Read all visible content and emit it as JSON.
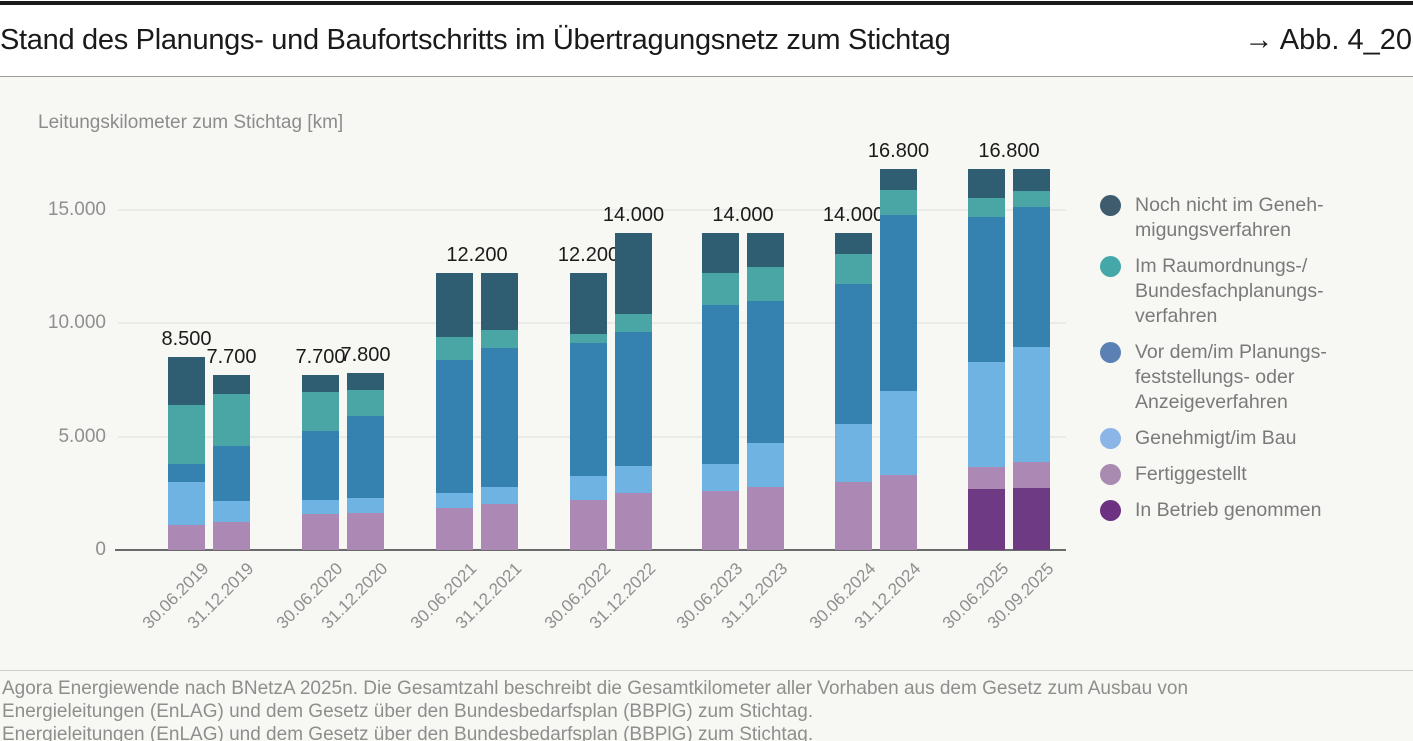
{
  "header": {
    "title": "Stand des Planungs- und Baufortschritts im Übertragungsnetz zum Stichtag",
    "figure_ref": "→ Abb. 4_20"
  },
  "footer": {
    "line1": "Agora Energiewende nach BNetzA 2025n. Die Gesamtzahl beschreibt die Gesamtkilometer aller Vorhaben aus dem Gesetz zum Ausbau von",
    "line2": "Energieleitungen (EnLAG) und dem Gesetz über den Bundesbedarfsplan (BBPlG) zum Stichtag.",
    "line3_clipped": "Energieleitungen (EnLAG) und dem Gesetz über den Bundesbedarfsplan (BBPlG) zum Stichtag."
  },
  "chart_data": {
    "type": "bar",
    "subtype": "stacked",
    "title": "Stand des Planungs- und Baufortschritts im Übertragungsnetz zum Stichtag",
    "ylabel": "Leitungskilometer zum Stichtag [km]",
    "unit": "km",
    "ylim": [
      0,
      17600
    ],
    "grid": true,
    "legend_position": "right",
    "yticks": [
      {
        "value": 0,
        "label": "0"
      },
      {
        "value": 5000,
        "label": "5.000"
      },
      {
        "value": 10000,
        "label": "10.000"
      },
      {
        "value": 15000,
        "label": "15.000"
      }
    ],
    "series": [
      {
        "name": "Noch nicht im Genehmigungsverfahren",
        "legend_label": "Noch nicht im Geneh-\nmigungsverfahren",
        "color": "#2F5D72",
        "dot": "#3E5C6E"
      },
      {
        "name": "Im Raumordnungs-/Bundesfachplanungsverfahren",
        "legend_label": "Im Raumordnungs-/\nBundesfachplanungs-\nverfahren",
        "color": "#49A6A4",
        "dot": "#45A8A8"
      },
      {
        "name": "Vor dem/im Planungsfeststellungs- oder Anzeigeverfahren",
        "legend_label": "Vor dem/im Planungs-\nfeststellungs- oder\nAnzeigeverfahren",
        "color": "#3581AF",
        "dot": "#5B80B4"
      },
      {
        "name": "Genehmigt/im Bau",
        "legend_label": "Genehmigt/im Bau",
        "color": "#6FB3E2",
        "dot": "#8BB4E7"
      },
      {
        "name": "Fertiggestellt",
        "legend_label": "Fertiggestellt",
        "color": "#AC88B4",
        "dot": "#A98AB1"
      },
      {
        "name": "In Betrieb genommen",
        "legend_label": "In Betrieb genommen",
        "color": "#6E3A84",
        "dot": "#6C3180"
      }
    ],
    "values_order_note": "values per bar follow series order top-of-stack to bottom-of-stack, in km",
    "groups": [
      {
        "center_label": null,
        "bars": [
          {
            "category": "30.06.2019",
            "values": [
              2100,
              2600,
              800,
              1900,
              1100,
              0
            ],
            "total": 8500,
            "label": "8.500"
          },
          {
            "category": "31.12.2019",
            "values": [
              800,
              2300,
              2450,
              900,
              1250,
              0
            ],
            "total": 7700,
            "label": "7.700"
          }
        ]
      },
      {
        "center_label": null,
        "bars": [
          {
            "category": "30.06.2020",
            "values": [
              750,
              1700,
              3050,
              600,
              1600,
              0
            ],
            "total": 7700,
            "label": "7.700"
          },
          {
            "category": "31.12.2020",
            "values": [
              750,
              1150,
              3600,
              650,
              1650,
              0
            ],
            "total": 7800,
            "label": "7.800"
          }
        ]
      },
      {
        "center_label": "12.200",
        "bars": [
          {
            "category": "30.06.2021",
            "values": [
              2800,
              1000,
              5900,
              650,
              1850,
              0
            ],
            "total": 12200,
            "label": null
          },
          {
            "category": "31.12.2021",
            "values": [
              2500,
              800,
              6100,
              750,
              2050,
              0
            ],
            "total": 12200,
            "label": null
          }
        ]
      },
      {
        "center_label": null,
        "bars": [
          {
            "category": "30.06.2022",
            "values": [
              2650,
              400,
              5900,
              1050,
              2200,
              0
            ],
            "total": 12200,
            "label": "12.200"
          },
          {
            "category": "31.12.2022",
            "values": [
              3600,
              800,
              5900,
              1200,
              2500,
              0
            ],
            "total": 14000,
            "label": "14.000"
          }
        ]
      },
      {
        "center_label": "14.000",
        "bars": [
          {
            "category": "30.06.2023",
            "values": [
              1800,
              1400,
              7000,
              1200,
              2600,
              0
            ],
            "total": 14000,
            "label": null
          },
          {
            "category": "31.12.2023",
            "values": [
              1500,
              1500,
              6300,
              1900,
              2800,
              0
            ],
            "total": 14000,
            "label": null
          }
        ]
      },
      {
        "center_label": null,
        "bars": [
          {
            "category": "30.06.2024",
            "values": [
              950,
              1300,
              6200,
              2550,
              3000,
              0
            ],
            "total": 14000,
            "label": "14.000"
          },
          {
            "category": "31.12.2024",
            "values": [
              900,
              1100,
              7800,
              3700,
              3300,
              0
            ],
            "total": 16800,
            "label": "16.800"
          }
        ]
      },
      {
        "center_label": "16.800",
        "bars": [
          {
            "category": "30.06.2025",
            "values": [
              1250,
              850,
              6400,
              4650,
              950,
              2700
            ],
            "total": 16800,
            "label": null
          },
          {
            "category": "30.09.2025",
            "values": [
              950,
              700,
              6200,
              5050,
              1150,
              2750
            ],
            "total": 16800,
            "label": null
          }
        ]
      }
    ],
    "colors": {
      "panel_background": "#F7F7F4",
      "grid": "#EAEAE7",
      "axis": "#6A6A6A",
      "muted_text": "#8E8E8C",
      "label_text": "#1B1B19",
      "top_rule": "#1A1A1A"
    }
  }
}
